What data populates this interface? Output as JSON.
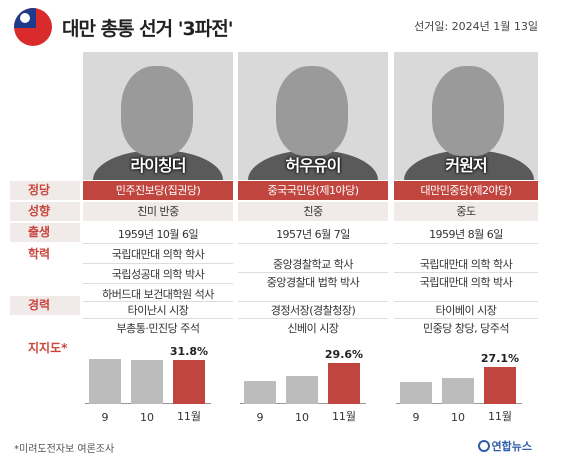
{
  "header": {
    "title": "대만 총통 선거 '3파전'",
    "election_date": "선거일: 2024년 1월 13일"
  },
  "row_labels": {
    "party": "정당",
    "stance": "성향",
    "birth": "출생",
    "education": "학력",
    "career": "경력",
    "support": "지지도*"
  },
  "candidates": [
    {
      "name": "라이칭더",
      "party": "민주진보당(집권당)",
      "stance": "친미 반중",
      "birth": "1959년 10월 6일",
      "education": [
        "국립대만대 의학 학사",
        "국립성공대 의학 박사",
        "하버드대 보건대학원 석사"
      ],
      "career": [
        "타이난시 시장",
        "부총통·민진당 주석"
      ],
      "support_label": "31.8%"
    },
    {
      "name": "허우유이",
      "party": "중국국민당(제1야당)",
      "stance": "친중",
      "birth": "1957년 6월 7일",
      "education": [
        "중앙경찰학교 학사",
        "중앙경찰대 법학 박사"
      ],
      "career": [
        "경정서장(경찰청장)",
        "신베이 시장"
      ],
      "support_label": "29.6%"
    },
    {
      "name": "커원저",
      "party": "대만민중당(제2야당)",
      "stance": "중도",
      "birth": "1959년 8월 6일",
      "education": [
        "국립대만대 의학 학사",
        "국립대만대 의학 박사"
      ],
      "career": [
        "타이베이 시장",
        "민중당 창당, 당주석"
      ],
      "support_label": "27.1%"
    }
  ],
  "chart_data": [
    {
      "type": "bar",
      "categories": [
        "9",
        "10",
        "11월"
      ],
      "values": [
        33,
        32,
        31.8
      ],
      "value_label": "31.8%",
      "ylim": [
        0,
        45
      ]
    },
    {
      "type": "bar",
      "categories": [
        "9",
        "10",
        "11월"
      ],
      "values": [
        17,
        20,
        29.6
      ],
      "value_label": "29.6%",
      "ylim": [
        0,
        45
      ]
    },
    {
      "type": "bar",
      "categories": [
        "9",
        "10",
        "11월"
      ],
      "values": [
        16,
        19,
        27.1
      ],
      "value_label": "27.1%",
      "ylim": [
        0,
        45
      ]
    }
  ],
  "footer": {
    "footnote": "*미려도전자보 여론조사",
    "logo": "연합뉴스"
  },
  "colors": {
    "accent": "#c0453e",
    "bar_gray": "#bcbcbc",
    "shade": "#f0ebe8"
  }
}
